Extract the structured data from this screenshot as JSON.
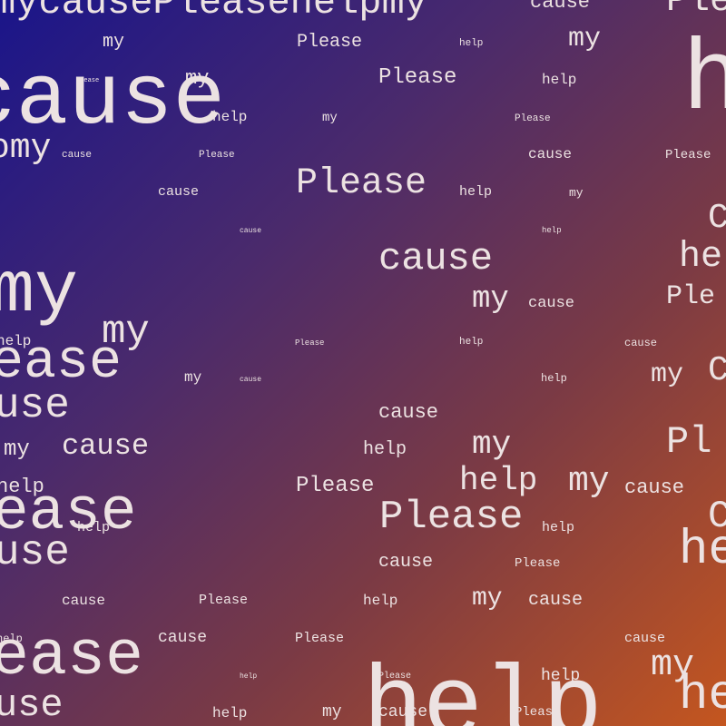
{
  "words": [
    "mycausePleasehelpmy",
    "cause",
    "Ple",
    "my",
    "Please",
    "help",
    "my",
    "cause",
    "my",
    "Please",
    "help",
    "h",
    "help",
    "my",
    "Please",
    "omy",
    "cause",
    "Please",
    "cause",
    "Please",
    "Please",
    "help",
    "my",
    "cause",
    "help",
    "cause",
    "C",
    "cause",
    "he",
    "my",
    "my",
    "cause",
    "Ple",
    "my",
    "help",
    "Please",
    "help",
    "cause",
    "ease",
    "my",
    "cause",
    "help",
    "my",
    "C",
    "use",
    "cause",
    "my",
    "cause",
    "help",
    "my",
    "Pl",
    "help",
    "Please",
    "help",
    "my",
    "cause",
    "ease",
    "Please",
    "help",
    "C",
    "use",
    "cause",
    "Please",
    "he",
    "cause",
    "Please",
    "help",
    "my",
    "cause",
    "help",
    "cause",
    "Please",
    "cause",
    "ease",
    "my",
    "help",
    "Please",
    "help",
    "use",
    "help",
    "my",
    "cause",
    "Please",
    "he",
    "help",
    "Please",
    "help"
  ]
}
